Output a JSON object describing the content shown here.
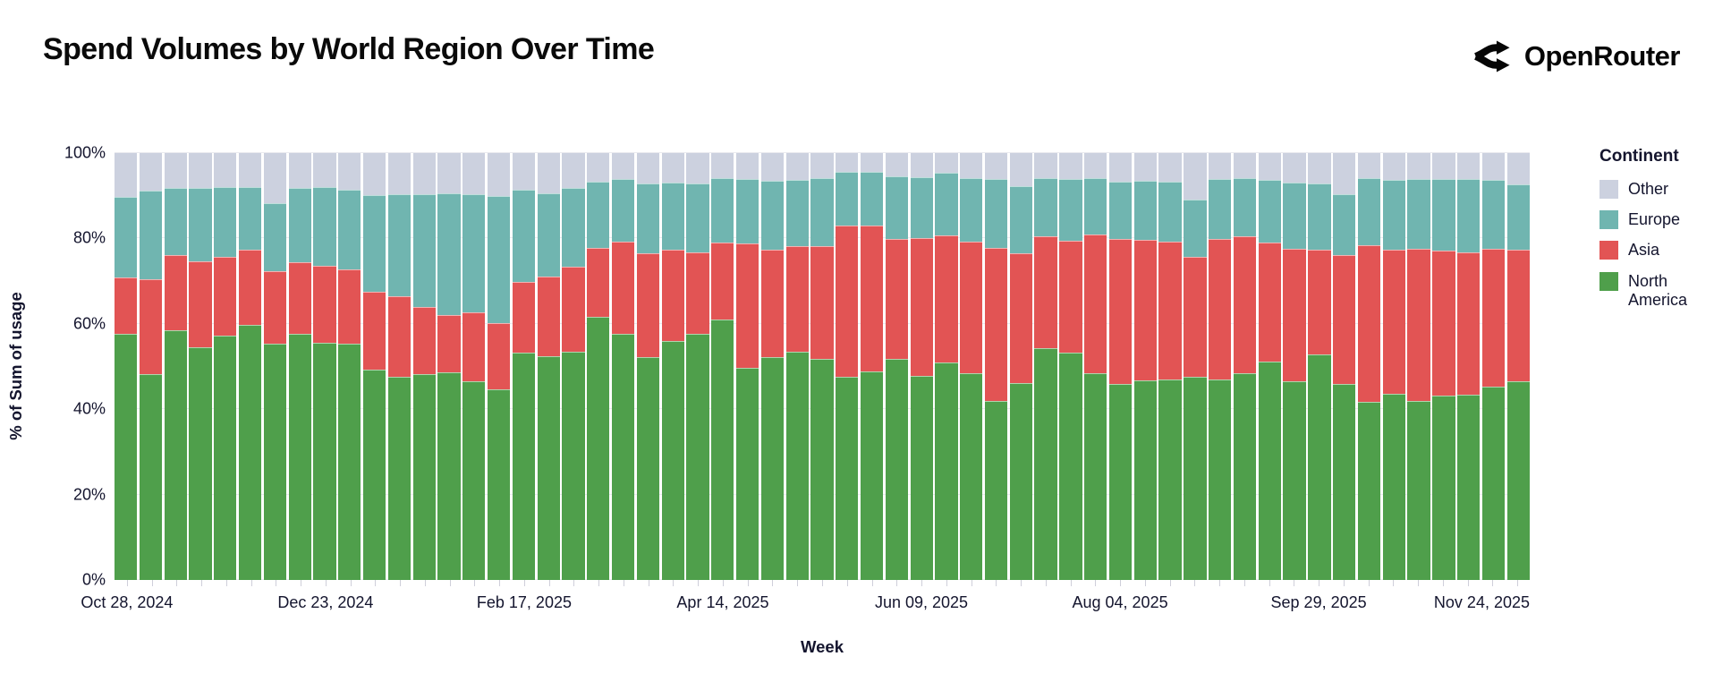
{
  "header": {
    "title": "Spend Volumes by World Region Over Time",
    "brand": "OpenRouter"
  },
  "chart_data": {
    "type": "bar",
    "variant": "stacked-percent",
    "title": "Spend Volumes by World Region Over Time",
    "xlabel": "Week",
    "ylabel": "% of Sum of usage",
    "ylim": [
      0,
      100
    ],
    "grid": "horizontal",
    "y_tick_labels": [
      "0%",
      "20%",
      "40%",
      "60%",
      "80%",
      "100%"
    ],
    "x_tick_every": 8,
    "x_axis_labels_shown": [
      "Oct 28, 2024",
      "Dec 23, 2024",
      "Feb 17, 2025",
      "Apr 14, 2025",
      "Jun 09, 2025",
      "Aug 04, 2025",
      "Sep 29, 2025",
      "Nov 24, 2025"
    ],
    "legend": {
      "title": "Continent",
      "position": "right",
      "order_top_to_bottom": [
        "Other",
        "Europe",
        "Asia",
        "North America"
      ]
    },
    "categories": [
      "Oct 28, 2024",
      "Nov 04, 2024",
      "Nov 11, 2024",
      "Nov 18, 2024",
      "Nov 25, 2024",
      "Dec 02, 2024",
      "Dec 09, 2024",
      "Dec 16, 2024",
      "Dec 23, 2024",
      "Dec 30, 2024",
      "Jan 06, 2025",
      "Jan 13, 2025",
      "Jan 20, 2025",
      "Jan 27, 2025",
      "Feb 03, 2025",
      "Feb 10, 2025",
      "Feb 17, 2025",
      "Feb 24, 2025",
      "Mar 03, 2025",
      "Mar 10, 2025",
      "Mar 17, 2025",
      "Mar 24, 2025",
      "Mar 31, 2025",
      "Apr 07, 2025",
      "Apr 14, 2025",
      "Apr 21, 2025",
      "Apr 28, 2025",
      "May 05, 2025",
      "May 12, 2025",
      "May 19, 2025",
      "May 26, 2025",
      "Jun 02, 2025",
      "Jun 09, 2025",
      "Jun 16, 2025",
      "Jun 23, 2025",
      "Jun 30, 2025",
      "Jul 07, 2025",
      "Jul 14, 2025",
      "Jul 21, 2025",
      "Jul 28, 2025",
      "Aug 04, 2025",
      "Aug 11, 2025",
      "Aug 18, 2025",
      "Aug 25, 2025",
      "Sep 01, 2025",
      "Sep 08, 2025",
      "Sep 15, 2025",
      "Sep 22, 2025",
      "Sep 29, 2025",
      "Oct 06, 2025",
      "Oct 13, 2025",
      "Oct 20, 2025",
      "Oct 27, 2025",
      "Nov 03, 2025",
      "Nov 10, 2025",
      "Nov 17, 2025",
      "Nov 24, 2025"
    ],
    "series": [
      {
        "name": "North America",
        "color": "#4f9f4b",
        "values": [
          57.6,
          48.2,
          58.4,
          54.6,
          57.3,
          59.7,
          55.3,
          57.6,
          55.6,
          55.4,
          49.3,
          47.6,
          48.3,
          48.6,
          46.6,
          44.6,
          53.3,
          52.4,
          53.4,
          61.6,
          57.6,
          52.1,
          56.0,
          57.6,
          60.9,
          49.7,
          52.1,
          53.5,
          51.7,
          47.6,
          48.9,
          51.7,
          47.8,
          50.9,
          48.5,
          41.9,
          46.4,
          54.2,
          53.3,
          48.5,
          46.0,
          46.7,
          46.9,
          47.6,
          47.1,
          48.5,
          51.1,
          46.6,
          52.9,
          46.0,
          41.7,
          43.5,
          41.9,
          43.1,
          43.3,
          45.4,
          46.6
        ]
      },
      {
        "name": "Asia",
        "color": "#e25454",
        "values": [
          13.2,
          22.3,
          17.6,
          20.1,
          18.3,
          17.6,
          17.1,
          16.8,
          18.0,
          17.4,
          18.3,
          18.9,
          15.6,
          13.5,
          16.0,
          15.5,
          16.6,
          18.7,
          19.9,
          16.1,
          21.6,
          24.5,
          21.4,
          19.1,
          18.1,
          29.2,
          25.3,
          24.6,
          26.6,
          35.4,
          34.1,
          28.2,
          32.3,
          29.8,
          30.7,
          35.9,
          30.4,
          26.4,
          26.1,
          32.5,
          33.9,
          33.0,
          32.5,
          28.1,
          32.9,
          31.9,
          27.9,
          31.1,
          24.5,
          30.1,
          36.8,
          33.9,
          35.8,
          34.1,
          33.3,
          32.2,
          30.9
        ]
      },
      {
        "name": "Europe",
        "color": "#70b5b0",
        "values": [
          18.9,
          20.6,
          15.9,
          17.2,
          16.4,
          14.8,
          15.9,
          17.5,
          18.5,
          18.6,
          22.5,
          23.9,
          26.4,
          28.5,
          27.7,
          29.8,
          21.6,
          19.5,
          18.6,
          15.6,
          14.7,
          16.2,
          15.6,
          16.1,
          15.1,
          15.0,
          16.1,
          15.6,
          15.8,
          12.5,
          12.5,
          14.7,
          14.3,
          14.6,
          15.0,
          16.1,
          15.9,
          13.5,
          14.5,
          13.2,
          13.4,
          13.8,
          14.0,
          13.4,
          14.0,
          13.7,
          14.7,
          15.4,
          15.4,
          14.3,
          15.6,
          16.3,
          16.3,
          16.7,
          17.2,
          16.1,
          15.2
        ]
      },
      {
        "name": "Other",
        "color": "#ccd1df",
        "values": [
          10.3,
          8.9,
          8.1,
          8.1,
          8.0,
          7.9,
          11.7,
          8.1,
          7.9,
          8.6,
          9.9,
          9.6,
          9.7,
          9.4,
          9.7,
          10.1,
          8.5,
          9.4,
          8.1,
          6.7,
          6.1,
          7.2,
          7.0,
          7.2,
          5.9,
          6.1,
          6.5,
          6.3,
          5.9,
          4.5,
          4.5,
          5.4,
          5.6,
          4.7,
          5.8,
          6.1,
          7.7,
          5.9,
          6.1,
          5.8,
          6.7,
          6.5,
          6.7,
          10.9,
          6.1,
          5.9,
          6.3,
          7.0,
          7.2,
          9.6,
          5.9,
          6.3,
          6.1,
          6.1,
          6.1,
          6.4,
          7.4
        ]
      }
    ]
  }
}
